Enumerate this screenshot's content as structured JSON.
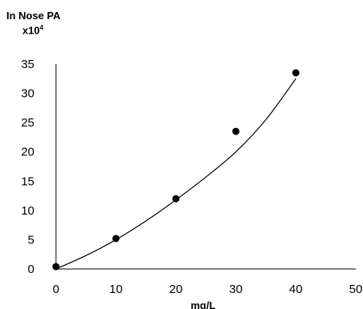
{
  "chart_data": {
    "type": "scatter",
    "ylabel_line1": "In Nose PA",
    "ylabel_scale_base": "x10",
    "ylabel_scale_exp": "4",
    "xlabel": "mg/L",
    "xlim": [
      0,
      50
    ],
    "ylim": [
      0,
      35
    ],
    "xticks": [
      "0",
      "10",
      "20",
      "30",
      "40",
      "50"
    ],
    "yticks": [
      "0",
      "5",
      "10",
      "15",
      "20",
      "25",
      "30",
      "35"
    ],
    "grid": false,
    "series": [
      {
        "points": [
          {
            "x": 0,
            "y": 0.4
          },
          {
            "x": 10,
            "y": 5.2
          },
          {
            "x": 20,
            "y": 12.0
          },
          {
            "x": 30,
            "y": 23.5
          },
          {
            "x": 40,
            "y": 33.5
          }
        ]
      }
    ],
    "fit_curve": {
      "type": "polynomial",
      "x": [
        0,
        5,
        10,
        15,
        20,
        25,
        30,
        35,
        40
      ],
      "y": [
        0,
        2.3,
        5.0,
        8.2,
        11.8,
        15.7,
        20.0,
        25.5,
        32.5
      ]
    }
  }
}
